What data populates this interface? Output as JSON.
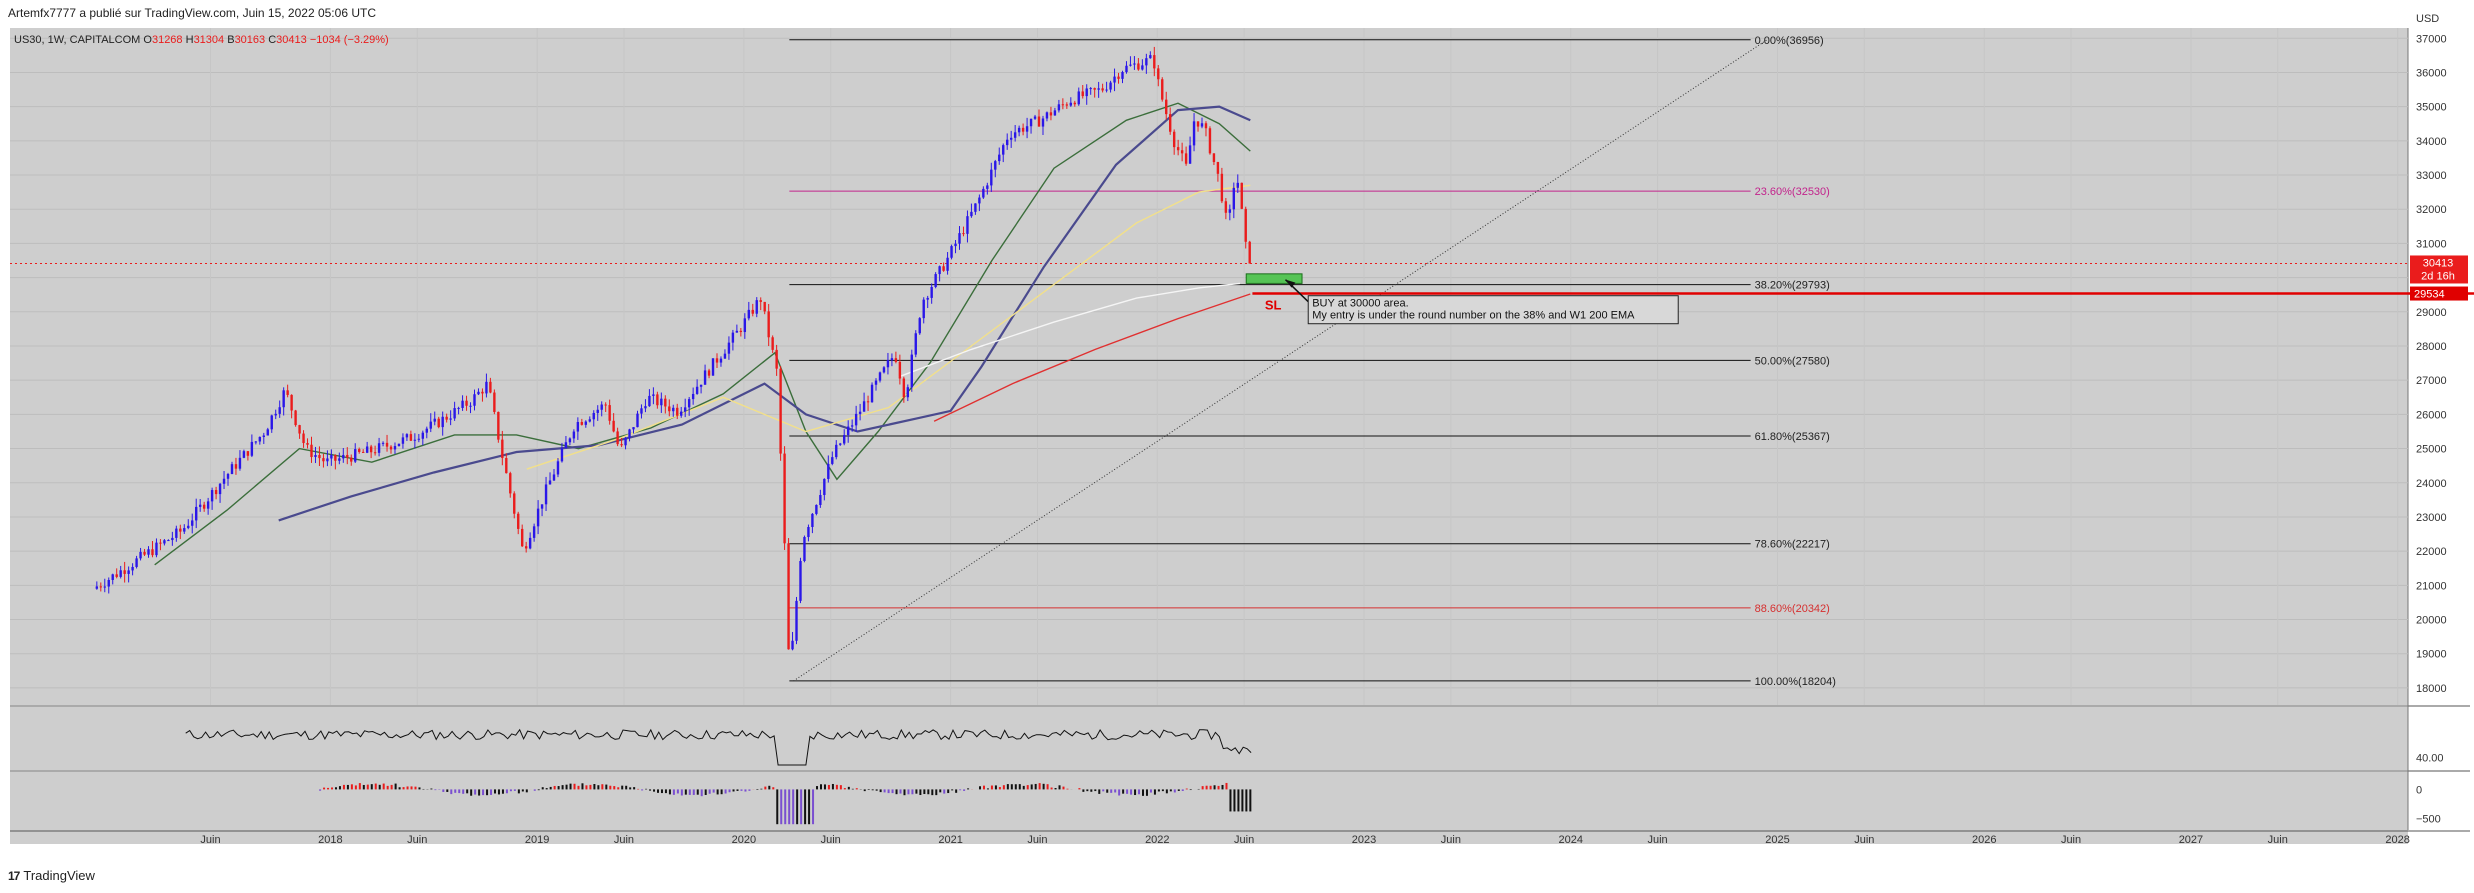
{
  "header": {
    "publish_text": "Artemfx7777 a publié sur TradingView.com, Juin 15, 2022 05:06 UTC"
  },
  "legend": {
    "symbol": "US30, 1W, CAPITALCOM",
    "o_label": "O",
    "o_value": "31268",
    "h_label": "H",
    "h_value": "31304",
    "b_label": "B",
    "b_value": "30163",
    "c_label": "C",
    "c_value": "30413",
    "change": "−1034 (−3.29%)"
  },
  "colors": {
    "background": "#cecece",
    "up": "#2a17e8",
    "down": "#ea1c1c",
    "fib_black": "#111111",
    "fib_magenta": "#c2248c",
    "fib_red": "#d63030",
    "ema_green": "#3b6e3b",
    "ema_navy": "#4a4a8e",
    "ema_yellow": "#f2e08a",
    "ema_white": "#f5f5f5",
    "ema_red": "#e03030",
    "sl_line": "#e00000"
  },
  "chart_data": [
    {
      "type": "candlestick",
      "symbol": "US30",
      "timeframe": "1W",
      "y_axis_label": "USD",
      "ylim": [
        17500,
        37300
      ],
      "y_ticks": [
        18000,
        19000,
        20000,
        21000,
        22000,
        23000,
        24000,
        25000,
        26000,
        27000,
        28000,
        29000,
        30000,
        31000,
        32000,
        33000,
        34000,
        35000,
        36000,
        37000
      ],
      "y_tick_labels": [
        "18000",
        "19000",
        "20000",
        "21000",
        "22000",
        "23000",
        "24000",
        "25000",
        "26000",
        "27000",
        "28000",
        "29000",
        "30000",
        "31000",
        "32000",
        "33000",
        "34000",
        "35000",
        "36000",
        "37000"
      ],
      "x_ticks": [
        {
          "label": "Juin",
          "t": 2017.42
        },
        {
          "label": "2018",
          "t": 2018.0
        },
        {
          "label": "Juin",
          "t": 2018.42
        },
        {
          "label": "2019",
          "t": 2019.0
        },
        {
          "label": "Juin",
          "t": 2019.42
        },
        {
          "label": "2020",
          "t": 2020.0
        },
        {
          "label": "Juin",
          "t": 2020.42
        },
        {
          "label": "2021",
          "t": 2021.0
        },
        {
          "label": "Juin",
          "t": 2021.42
        },
        {
          "label": "2022",
          "t": 2022.0
        },
        {
          "label": "Juin",
          "t": 2022.42
        },
        {
          "label": "2023",
          "t": 2023.0
        },
        {
          "label": "Juin",
          "t": 2023.42
        },
        {
          "label": "2024",
          "t": 2024.0
        },
        {
          "label": "Juin",
          "t": 2024.42
        },
        {
          "label": "2025",
          "t": 2025.0
        },
        {
          "label": "Juin",
          "t": 2025.42
        },
        {
          "label": "2026",
          "t": 2026.0
        },
        {
          "label": "Juin",
          "t": 2026.42
        },
        {
          "label": "2027",
          "t": 2027.0
        },
        {
          "label": "Juin",
          "t": 2027.42
        },
        {
          "label": "2028",
          "t": 2028.0
        }
      ],
      "xlim": [
        2016.45,
        2028.05
      ],
      "price_path": [
        [
          2016.87,
          20900
        ],
        [
          2016.95,
          21200
        ],
        [
          2017.1,
          21800
        ],
        [
          2017.3,
          22600
        ],
        [
          2017.5,
          24100
        ],
        [
          2017.7,
          25500
        ],
        [
          2017.8,
          26700
        ],
        [
          2017.9,
          25000
        ],
        [
          2018.0,
          24600
        ],
        [
          2018.2,
          24900
        ],
        [
          2018.4,
          25300
        ],
        [
          2018.55,
          25800
        ],
        [
          2018.7,
          26400
        ],
        [
          2018.78,
          26900
        ],
        [
          2018.85,
          24800
        ],
        [
          2018.95,
          22000
        ],
        [
          2019.05,
          23600
        ],
        [
          2019.2,
          25700
        ],
        [
          2019.35,
          26300
        ],
        [
          2019.42,
          24900
        ],
        [
          2019.55,
          26500
        ],
        [
          2019.7,
          26100
        ],
        [
          2019.85,
          27300
        ],
        [
          2020.0,
          28500
        ],
        [
          2020.1,
          29400
        ],
        [
          2020.18,
          27200
        ],
        [
          2020.22,
          21600
        ],
        [
          2020.24,
          18300
        ],
        [
          2020.3,
          22300
        ],
        [
          2020.45,
          24800
        ],
        [
          2020.6,
          26300
        ],
        [
          2020.75,
          27800
        ],
        [
          2020.8,
          26500
        ],
        [
          2020.88,
          29300
        ],
        [
          2021.0,
          30500
        ],
        [
          2021.15,
          32200
        ],
        [
          2021.3,
          34200
        ],
        [
          2021.45,
          34600
        ],
        [
          2021.6,
          35200
        ],
        [
          2021.75,
          35500
        ],
        [
          2021.85,
          36100
        ],
        [
          2022.0,
          36400
        ],
        [
          2022.03,
          35500
        ],
        [
          2022.1,
          34000
        ],
        [
          2022.16,
          33200
        ],
        [
          2022.2,
          34700
        ],
        [
          2022.25,
          34300
        ],
        [
          2022.32,
          32800
        ],
        [
          2022.36,
          31400
        ],
        [
          2022.4,
          33200
        ],
        [
          2022.44,
          31300
        ],
        [
          2022.455,
          30413
        ]
      ],
      "fib_levels": [
        {
          "label": "0.00%(36956)",
          "value": 36956,
          "color": "black"
        },
        {
          "label": "23.60%(32530)",
          "value": 32530,
          "color": "magenta"
        },
        {
          "label": "38.20%(29793)",
          "value": 29793,
          "color": "black"
        },
        {
          "label": "50.00%(27580)",
          "value": 27580,
          "color": "black"
        },
        {
          "label": "61.80%(25367)",
          "value": 25367,
          "color": "black"
        },
        {
          "label": "78.60%(22217)",
          "value": 22217,
          "color": "black"
        },
        {
          "label": "88.60%(20342)",
          "value": 20342,
          "color": "red"
        },
        {
          "label": "100.00%(18204)",
          "value": 18204,
          "color": "black"
        }
      ],
      "trendline": {
        "from": [
          2020.24,
          18204
        ],
        "to": [
          2024.95,
          36956
        ],
        "style": "dotted"
      },
      "entry_zone": {
        "from": [
          2022.43,
          29830
        ],
        "to": [
          2022.7,
          30110
        ]
      },
      "stop_loss": {
        "label": "SL",
        "value": 29534
      },
      "annotation": {
        "line1": "BUY at 30000 area.",
        "line2": "My entry is under the round number on the 38% and W1 200 EMA"
      },
      "price_badges": {
        "current_price": "30413",
        "countdown": "2d 16h",
        "sl_price": "29534"
      },
      "moving_averages": [
        {
          "color": "green",
          "points": [
            [
              2017.15,
              21600
            ],
            [
              2017.5,
              23200
            ],
            [
              2017.85,
              25000
            ],
            [
              2018.2,
              24600
            ],
            [
              2018.6,
              25400
            ],
            [
              2018.9,
              25400
            ],
            [
              2019.2,
              25000
            ],
            [
              2019.55,
              25600
            ],
            [
              2019.9,
              26600
            ],
            [
              2020.15,
              27800
            ],
            [
              2020.3,
              25500
            ],
            [
              2020.45,
              24100
            ],
            [
              2020.65,
              25500
            ],
            [
              2020.9,
              27500
            ],
            [
              2021.2,
              30500
            ],
            [
              2021.5,
              33200
            ],
            [
              2021.85,
              34600
            ],
            [
              2022.1,
              35100
            ],
            [
              2022.3,
              34500
            ],
            [
              2022.45,
              33700
            ]
          ]
        },
        {
          "color": "navy",
          "points": [
            [
              2017.75,
              22900
            ],
            [
              2018.1,
              23600
            ],
            [
              2018.5,
              24300
            ],
            [
              2018.9,
              24900
            ],
            [
              2019.3,
              25100
            ],
            [
              2019.7,
              25700
            ],
            [
              2020.1,
              26900
            ],
            [
              2020.3,
              26000
            ],
            [
              2020.55,
              25500
            ],
            [
              2020.85,
              25900
            ],
            [
              2021.0,
              26100
            ],
            [
              2021.15,
              27400
            ],
            [
              2021.45,
              30300
            ],
            [
              2021.8,
              33300
            ],
            [
              2022.1,
              34900
            ],
            [
              2022.3,
              35000
            ],
            [
              2022.45,
              34600
            ]
          ]
        },
        {
          "color": "yellow",
          "points": [
            [
              2018.95,
              24400
            ],
            [
              2019.4,
              25300
            ],
            [
              2019.9,
              26500
            ],
            [
              2020.3,
              25500
            ],
            [
              2020.7,
              26200
            ],
            [
              2021.1,
              28000
            ],
            [
              2021.5,
              29800
            ],
            [
              2021.9,
              31600
            ],
            [
              2022.2,
              32500
            ],
            [
              2022.45,
              32700
            ]
          ]
        },
        {
          "color": "white",
          "points": [
            [
              2020.75,
              27100
            ],
            [
              2021.1,
              27900
            ],
            [
              2021.5,
              28700
            ],
            [
              2021.9,
              29400
            ],
            [
              2022.2,
              29700
            ],
            [
              2022.4,
              29830
            ]
          ]
        },
        {
          "color": "red",
          "points": [
            [
              2020.92,
              25800
            ],
            [
              2021.3,
              26900
            ],
            [
              2021.7,
              27900
            ],
            [
              2022.1,
              28800
            ],
            [
              2022.45,
              29520
            ]
          ]
        }
      ]
    },
    {
      "type": "line",
      "name": "oscillator",
      "y_tick_labels": [
        "40.00"
      ],
      "y_ticks": [
        40
      ],
      "ylim": [
        30,
        80
      ]
    },
    {
      "type": "histogram",
      "name": "momentum",
      "y_tick_labels": [
        "0",
        "−500"
      ],
      "y_ticks": [
        0,
        -500
      ],
      "ylim": [
        -700,
        300
      ]
    }
  ],
  "footer": {
    "brand": "TradingView"
  }
}
